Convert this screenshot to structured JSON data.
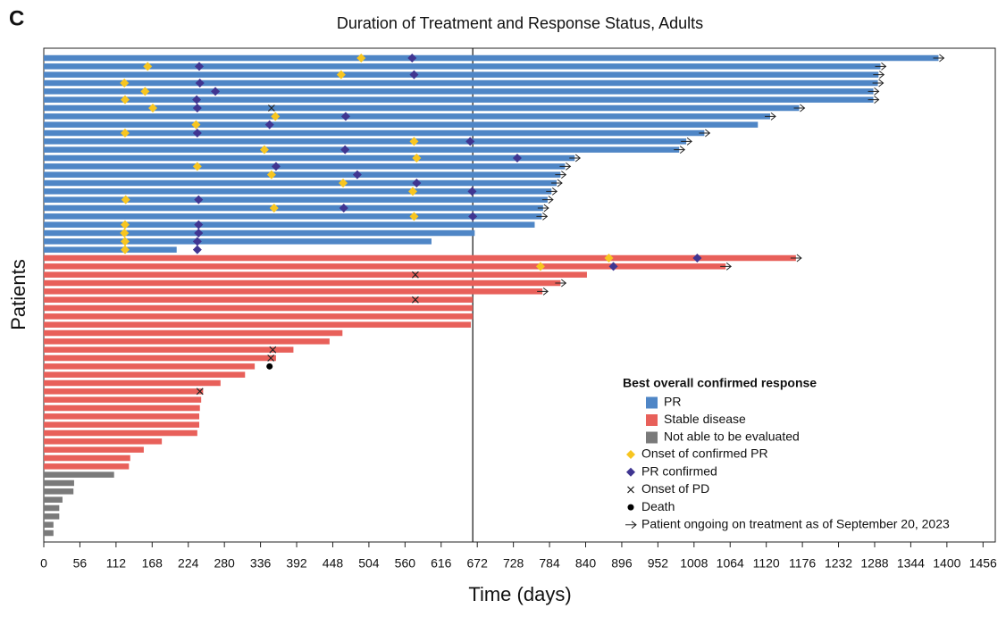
{
  "chart_data": {
    "type": "swimmer",
    "panel_label": "C",
    "title": "Duration of Treatment and Response Status, Adults",
    "x_label": "Time (days)",
    "y_label": "Patients",
    "xlim": [
      0,
      1475
    ],
    "xticks": [
      0,
      56,
      112,
      168,
      224,
      280,
      336,
      392,
      448,
      504,
      560,
      616,
      672,
      728,
      784,
      840,
      896,
      952,
      1008,
      1064,
      1120,
      1176,
      1232,
      1288,
      1344,
      1400,
      1456
    ],
    "reference_line": 665,
    "legend_title": "Best overall confirmed response",
    "ongoing_label": "Patient ongoing on treatment as of September 20, 2023",
    "markers": [
      {
        "name": "Onset of confirmed PR",
        "shape": "diamond",
        "color": "#f7c520"
      },
      {
        "name": "PR confirmed",
        "shape": "diamond",
        "color": "#3f3591"
      },
      {
        "name": "Onset of PD",
        "shape": "cross",
        "color": "#222222"
      },
      {
        "name": "Death",
        "shape": "circle",
        "color": "#000000"
      }
    ],
    "series": [
      {
        "name": "PR",
        "color": "#4f86c6",
        "values": [
          1387,
          1297,
          1294,
          1293,
          1286,
          1286,
          1171,
          1126,
          1107,
          1024,
          996,
          985,
          823,
          808,
          801,
          795,
          787,
          781,
          774,
          772,
          761,
          668,
          601,
          206
        ],
        "ongoing": [
          true,
          true,
          true,
          true,
          true,
          true,
          true,
          true,
          false,
          true,
          true,
          true,
          true,
          true,
          true,
          true,
          true,
          true,
          true,
          true,
          false,
          false,
          false,
          false
        ],
        "events": [
          [
            492,
            161,
            461,
            125,
            157,
            126,
            169,
            359,
            236,
            126,
            574,
            342,
            578,
            238,
            353,
            464,
            572,
            127,
            357,
            574,
            126,
            125,
            126,
            126
          ],
          [
            571,
            241,
            574,
            242,
            266,
            237,
            238,
            468,
            350,
            238,
            661,
            467,
            734,
            360,
            486,
            578,
            664,
            240,
            465,
            665,
            240,
            240,
            238,
            238
          ],
          [
            null,
            null,
            null,
            null,
            null,
            null,
            353,
            null,
            null,
            null,
            null,
            null,
            null,
            null,
            null,
            null,
            null,
            null,
            null,
            null,
            null,
            null,
            null,
            null
          ],
          [
            null,
            null,
            null,
            null,
            null,
            null,
            null,
            null,
            null,
            null,
            null,
            null,
            null,
            null,
            null,
            null,
            null,
            null,
            null,
            null,
            null,
            null,
            null,
            null
          ]
        ]
      },
      {
        "name": "Stable disease",
        "color": "#e8605a",
        "values": [
          1166,
          1057,
          842,
          801,
          773,
          665,
          665,
          665,
          662,
          463,
          443,
          387,
          360,
          327,
          312,
          274,
          247,
          244,
          242,
          241,
          241,
          238,
          183,
          155,
          134,
          132
        ],
        "ongoing": [
          true,
          true,
          false,
          true,
          true,
          false,
          false,
          false,
          false,
          false,
          false,
          false,
          false,
          false,
          false,
          false,
          false,
          false,
          false,
          false,
          false,
          false,
          false,
          false,
          false,
          false
        ],
        "events": [
          [
            876,
            770,
            null,
            null,
            null,
            null,
            null,
            null,
            null,
            null,
            null,
            null,
            null,
            null,
            null,
            null,
            null,
            null,
            null,
            null,
            null,
            null,
            null,
            null,
            null,
            null
          ],
          [
            1013,
            883,
            null,
            null,
            null,
            null,
            null,
            null,
            null,
            null,
            null,
            null,
            null,
            null,
            null,
            null,
            null,
            null,
            null,
            null,
            null,
            null,
            null,
            null,
            null,
            null
          ],
          [
            null,
            null,
            576,
            null,
            null,
            576,
            null,
            null,
            null,
            null,
            null,
            355,
            352,
            null,
            null,
            null,
            242,
            null,
            null,
            null,
            null,
            null,
            null,
            null,
            null,
            null
          ],
          [
            null,
            null,
            null,
            null,
            null,
            null,
            null,
            null,
            null,
            null,
            null,
            null,
            null,
            350,
            null,
            null,
            null,
            null,
            null,
            null,
            null,
            null,
            null,
            null,
            null,
            null
          ]
        ]
      },
      {
        "name": "Not able to be evaluated",
        "color": "#7a7a7a",
        "values": [
          109,
          47,
          46,
          29,
          24,
          24,
          15,
          15
        ],
        "ongoing": [
          false,
          false,
          false,
          false,
          false,
          false,
          false,
          false
        ],
        "events": [
          [
            null,
            null,
            null,
            null,
            null,
            null,
            null,
            null
          ],
          [
            null,
            null,
            null,
            null,
            null,
            null,
            null,
            null
          ],
          [
            null,
            null,
            null,
            null,
            null,
            null,
            null,
            null
          ],
          [
            null,
            null,
            null,
            null,
            null,
            null,
            null,
            null
          ]
        ]
      }
    ]
  }
}
